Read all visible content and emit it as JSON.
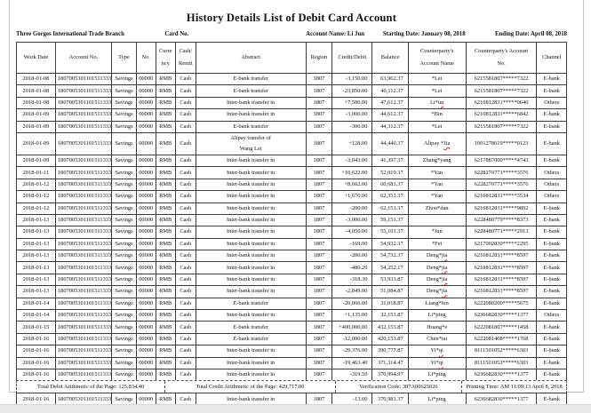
{
  "title": "History Details List of Debit Card Account",
  "info": {
    "branch": "Three Gorges International Trade Branch",
    "card_no_label": "Card No.",
    "account_name": "Account Name: Li Jun",
    "starting_date": "Starting Date: January 08, 2018",
    "ending_date": "Ending Date: April 08, 2018"
  },
  "table": {
    "columns": [
      {
        "key": "work_date",
        "label": [
          "Work Date"
        ]
      },
      {
        "key": "account_no",
        "label": [
          "Account No."
        ]
      },
      {
        "key": "type",
        "label": [
          "Type"
        ]
      },
      {
        "key": "no",
        "label": [
          "No."
        ]
      },
      {
        "key": "currency",
        "label": [
          "Curre",
          "ncy"
        ]
      },
      {
        "key": "cash_remit",
        "label": [
          "Cash/",
          "Remit"
        ]
      },
      {
        "key": "abstract",
        "label": [
          "Abstract"
        ]
      },
      {
        "key": "region",
        "label": [
          "Region"
        ]
      },
      {
        "key": "credit_debit",
        "label": [
          "Credit/Debit"
        ]
      },
      {
        "key": "balance",
        "label": [
          "Balance"
        ]
      },
      {
        "key": "cp_name",
        "label": [
          "Counterparty's",
          "Account Name"
        ]
      },
      {
        "key": "cp_account",
        "label": [
          "Counterparty's Account",
          "No."
        ]
      },
      {
        "key": "channel",
        "label": [
          "Channel"
        ]
      }
    ],
    "rows": [
      {
        "work_date": "2018-01-08",
        "account_no": "1807005301101511333",
        "type": "Savings",
        "no": "00000",
        "currency": "RMB",
        "cash_remit": "Cash",
        "abstract": "E-bank transfer",
        "region": "1807",
        "credit_debit": "-3,150.00",
        "balance": "63,962.37",
        "cp_name": "*Lei",
        "cp_account": "6215581807*****7322",
        "channel": "E-bank"
      },
      {
        "work_date": "2018-01-08",
        "account_no": "1807005301101511333",
        "type": "Savings",
        "no": "00000",
        "currency": "RMB",
        "cash_remit": "Cash",
        "abstract": "E-bank transfer",
        "region": "1807",
        "credit_debit": "-23,850.00",
        "balance": "40,112.37",
        "cp_name": "*Lei",
        "cp_account": "6215581807*****7322",
        "channel": "E-bank"
      },
      {
        "work_date": "2018-01-08",
        "account_no": "1807005301101511333",
        "type": "Savings",
        "no": "00000",
        "currency": "RMB",
        "cash_remit": "Cash",
        "abstract": "Inter-bank transfer in",
        "region": "1807",
        "credit_debit": "+7,500.00",
        "balance": "47,612.37",
        "cp_name": "Li*un",
        "cp_name_misspelled": true,
        "cp_account": "6210812831*****0640",
        "channel": "Others"
      },
      {
        "work_date": "2018-01-09",
        "account_no": "1807005301101511333",
        "type": "Savings",
        "no": "00000",
        "currency": "RMB",
        "cash_remit": "Cash",
        "abstract": "Inter-bank transfer in",
        "region": "1807",
        "credit_debit": "-3,000.00",
        "balance": "44,612.37",
        "cp_name": "*Bin",
        "cp_account": "6210812831*****6842",
        "channel": "E-bank"
      },
      {
        "work_date": "2018-01-09",
        "account_no": "1807005301101511333",
        "type": "Savings",
        "no": "00000",
        "currency": "RMB",
        "cash_remit": "Cash",
        "abstract": "E-bank transfer",
        "region": "1807",
        "credit_debit": "-300.00",
        "balance": "44,312.37",
        "cp_name": "*Lei",
        "cp_account": "6215581807*****7322",
        "channel": "E-bank"
      },
      {
        "work_date": "2018-01-09",
        "account_no": "1807005301101511333",
        "type": "Savings",
        "no": "00000",
        "currency": "RMB",
        "cash_remit": "Cash",
        "abstract": "Alipay transfer of\nWang Lei",
        "region": "1807",
        "credit_debit": "+128.00",
        "balance": "44,440.37",
        "cp_name": "Alipay *Jia",
        "cp_name_misspelled": true,
        "cp_account": "1001278619*****0123",
        "channel": "E-bank"
      },
      {
        "work_date": "2018-01-09",
        "account_no": "1807005301101511333",
        "type": "Savings",
        "no": "00000",
        "currency": "RMB",
        "cash_remit": "Cash",
        "abstract": "Inter-bank transfer in",
        "region": "1807",
        "credit_debit": "-3,043.00",
        "balance": "41,397.37",
        "cp_name": "Zhang*yang",
        "cp_account": "6217887000*****4743",
        "channel": "E-bank"
      },
      {
        "work_date": "2018-01-11",
        "account_no": "1807005301101511333",
        "type": "Savings",
        "no": "00000",
        "currency": "RMB",
        "cash_remit": "Cash",
        "abstract": "Inter-bank transfer in",
        "region": "1807",
        "credit_debit": "+10,622.00",
        "balance": "52,019.37",
        "cp_name": "*Yan",
        "cp_account": "6228270771*****3576",
        "channel": "Others"
      },
      {
        "work_date": "2018-01-12",
        "account_no": "1807005301101511333",
        "type": "Savings",
        "no": "00000",
        "currency": "RMB",
        "cash_remit": "Cash",
        "abstract": "Inter-bank transfer in",
        "region": "1807",
        "credit_debit": "+8,662.00",
        "balance": "60,681.37",
        "cp_name": "*Yan",
        "cp_account": "6228270771*****3576",
        "channel": "Others"
      },
      {
        "work_date": "2018-01-12",
        "account_no": "1807005301101511333",
        "type": "Savings",
        "no": "00000",
        "currency": "RMB",
        "cash_remit": "Cash",
        "abstract": "Inter-bank transfer in",
        "region": "1807",
        "credit_debit": "+1,670.00",
        "balance": "62,351.37",
        "cp_name": "*Yan",
        "cp_account": "6210812831*****3534",
        "channel": "Others"
      },
      {
        "work_date": "2018-01-12",
        "account_no": "1807005301101511333",
        "type": "Savings",
        "no": "00000",
        "currency": "RMB",
        "cash_remit": "Cash",
        "abstract": "Inter-bank transfer in",
        "region": "1807",
        "credit_debit": "-200.00",
        "balance": "62,151.37",
        "cp_name": "Zhou*dan",
        "cp_account": "6210812831*****9892",
        "channel": "E-bank"
      },
      {
        "work_date": "2018-01-13",
        "account_no": "1807005301101511333",
        "type": "Savings",
        "no": "00000",
        "currency": "RMB",
        "cash_remit": "Cash",
        "abstract": "Inter-bank transfer in",
        "region": "1807",
        "credit_debit": "-3,000.00",
        "balance": "59,151.37",
        "cp_name": "",
        "cp_account": "6228480779*****8373",
        "channel": "E-bank"
      },
      {
        "work_date": "2018-01-13",
        "account_no": "1807005301101511333",
        "type": "Savings",
        "no": "00000",
        "currency": "RMB",
        "cash_remit": "Cash",
        "abstract": "Inter-bank transfer in",
        "region": "1807",
        "credit_debit": "-4,050.00",
        "balance": "55,101.37",
        "cp_name": "*Jun",
        "cp_account": "6228480771*****2913",
        "channel": "E-bank"
      },
      {
        "work_date": "2018-01-13",
        "account_no": "1807005301101511333",
        "type": "Savings",
        "no": "00000",
        "currency": "RMB",
        "cash_remit": "Cash",
        "abstract": "Inter-bank transfer in",
        "region": "1807",
        "credit_debit": "-169.00",
        "balance": "54,932.37",
        "cp_name": "*Fei",
        "cp_account": "6217002830*****2295",
        "channel": "E-bank"
      },
      {
        "work_date": "2018-01-13",
        "account_no": "1807005301101511333",
        "type": "Savings",
        "no": "00000",
        "currency": "RMB",
        "cash_remit": "Cash",
        "abstract": "Inter-bank transfer in",
        "region": "1807",
        "credit_debit": "-200.00",
        "balance": "54,732.37",
        "cp_name": "Deng*jia",
        "cp_name_misspelled": true,
        "cp_account": "6210812831*****8597",
        "channel": "E-bank"
      },
      {
        "work_date": "2018-01-13",
        "account_no": "1807005301101511333",
        "type": "Savings",
        "no": "00000",
        "currency": "RMB",
        "cash_remit": "Cash",
        "abstract": "Inter-bank transfer in",
        "region": "1807",
        "credit_debit": "-480.20",
        "balance": "54,252.17",
        "cp_name": "Deng*jia",
        "cp_name_misspelled": true,
        "cp_account": "6210812831*****8597",
        "channel": "E-bank"
      },
      {
        "work_date": "2018-01-13",
        "account_no": "1807005301101511333",
        "type": "Savings",
        "no": "00000",
        "currency": "RMB",
        "cash_remit": "Cash",
        "abstract": "Inter-bank transfer in",
        "region": "1807",
        "credit_debit": "-318.30",
        "balance": "53,933.87",
        "cp_name": "Deng*jia",
        "cp_name_misspelled": true,
        "cp_account": "6210812831*****8597",
        "channel": "E-bank"
      },
      {
        "work_date": "2018-01-13",
        "account_no": "1807005301101511333",
        "type": "Savings",
        "no": "00000",
        "currency": "RMB",
        "cash_remit": "Cash",
        "abstract": "Inter-bank transfer in",
        "region": "1807",
        "credit_debit": "-2,849.00",
        "balance": "51,084.87",
        "cp_name": "Deng*jia",
        "cp_name_misspelled": true,
        "cp_account": "6210812831*****8597",
        "channel": "E-bank"
      },
      {
        "work_date": "2018-01-14",
        "account_no": "1807005301101511333",
        "type": "Savings",
        "no": "00000",
        "currency": "RMB",
        "cash_remit": "Cash",
        "abstract": "E-bank transfer",
        "region": "1807",
        "credit_debit": "-20,066.00",
        "balance": "31,018.87",
        "cp_name": "Liang*fen",
        "cp_account": "6222080200*****5675",
        "channel": "E-bank"
      },
      {
        "work_date": "2018-01-14",
        "account_no": "1807005301101511333",
        "type": "Savings",
        "no": "00000",
        "currency": "RMB",
        "cash_remit": "Cash",
        "abstract": "Inter-bank transfer in",
        "region": "1807",
        "credit_debit": "+1,135.00",
        "balance": "32,153.87",
        "cp_name": "Li*ping",
        "cp_account": "6236682830*****1377",
        "channel": "Others"
      },
      {
        "work_date": "2018-01-15",
        "account_no": "1807005301101511333",
        "type": "Savings",
        "no": "00000",
        "currency": "RMB",
        "cash_remit": "Cash",
        "abstract": "E-bank transfer",
        "region": "1807",
        "credit_debit": "+400,000,00",
        "balance": "432,153.87",
        "cp_name": "Huang*e",
        "cp_account": "6222081807*****1458",
        "channel": "E-bank"
      },
      {
        "work_date": "2018-01-16",
        "account_no": "1807005301101511333",
        "type": "Savings",
        "no": "00000",
        "currency": "RMB",
        "cash_remit": "Cash",
        "abstract": "E-bank transfer",
        "region": "1807",
        "credit_debit": "-12,000.00",
        "balance": "420,153.87",
        "cp_name": "Chen*tai",
        "cp_account": "6222081408*****1768",
        "channel": "E-bank"
      },
      {
        "work_date": "2018-01-16",
        "account_no": "1807005301101511333",
        "type": "Savings",
        "no": "00000",
        "currency": "RMB",
        "cash_remit": "Cash",
        "abstract": "Inter-bank transfer in",
        "region": "1807",
        "credit_debit": "-29,376.00",
        "balance": "390,777.87",
        "cp_name": "Yi*qi",
        "cp_name_misspelled": true,
        "cp_account": "8111501052*****6303",
        "channel": "E-bank"
      },
      {
        "work_date": "2018-01-16",
        "account_no": "1807005301101511333",
        "type": "Savings",
        "no": "00000",
        "currency": "RMB",
        "cash_remit": "Cash",
        "abstract": "Inter-bank transfer in",
        "region": "1807",
        "credit_debit": "-19,463.40",
        "balance": "371,314.47",
        "cp_name": "Yi*qi",
        "cp_name_misspelled": true,
        "cp_account": "8111501052*****6303",
        "channel": "E-bank"
      },
      {
        "work_date": "2018-01-16",
        "account_no": "1807005301101511333",
        "type": "Savings",
        "no": "00000",
        "currency": "RMB",
        "cash_remit": "Cash",
        "abstract": "Inter-bank transfer in",
        "region": "1807",
        "credit_debit": "-319.50",
        "balance": "370,994.97",
        "cp_name": "Li*ping",
        "cp_account": "6236682830*****1377",
        "channel": "E-bank"
      }
    ],
    "last_row": {
      "work_date": "2018-01-16",
      "account_no": "1807005301101511333",
      "type": "Savings",
      "no": "00000",
      "currency": "RMB",
      "cash_remit": "Cash",
      "abstract": "Inter-bank transfer in",
      "region": "1807",
      "credit_debit": "-13.60",
      "balance": "370,981.37",
      "cp_name": "Li*ping",
      "cp_account": "6236682830*****1377",
      "channel": "E-bank"
    }
  },
  "page_totals": {
    "total_debit": "Total Debit Arithmetic of the Page: 125,834.40",
    "total_credit": "Total Credit Arithmetic of the Page: 429,717.00",
    "verification_code": "Verification Code: 387A00625026",
    "printing_time": "Printing Time: AM 11:09:13 April 8, 2018"
  },
  "colors": {
    "squiggle_red": "#e02020",
    "border_black": "#3c3c3c"
  }
}
